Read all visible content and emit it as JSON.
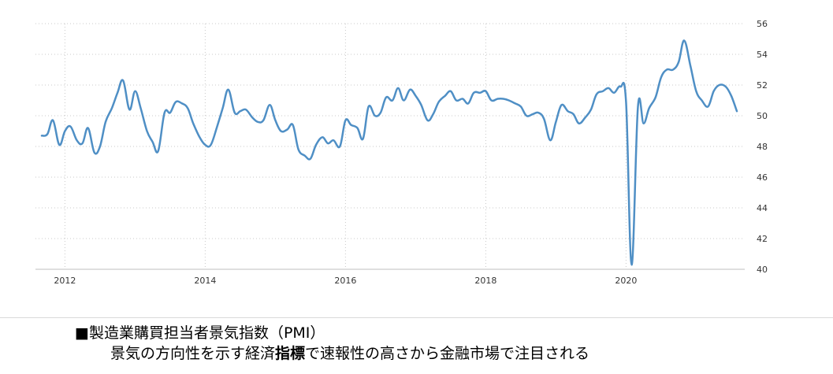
{
  "chart_data": {
    "type": "line",
    "title": "",
    "xlabel": "",
    "ylabel": "",
    "ylim": [
      40,
      56
    ],
    "xlim": [
      2011.67,
      2021.58
    ],
    "grid": true,
    "legend": "none",
    "line_color": "#4f8fc5",
    "grid_color": "#c8c8c8",
    "y_ticks": [
      "40",
      "42",
      "44",
      "46",
      "48",
      "50",
      "52",
      "54",
      "56"
    ],
    "x_ticks": [
      "2012",
      "2014",
      "2016",
      "2018",
      "2020"
    ],
    "series": [
      {
        "name": "",
        "points": [
          [
            2011.67,
            48.7
          ],
          [
            2011.75,
            48.8
          ],
          [
            2011.83,
            49.7
          ],
          [
            2011.92,
            48.1
          ],
          [
            2012.0,
            49.0
          ],
          [
            2012.08,
            49.3
          ],
          [
            2012.17,
            48.4
          ],
          [
            2012.25,
            48.2
          ],
          [
            2012.33,
            49.2
          ],
          [
            2012.42,
            47.6
          ],
          [
            2012.5,
            48.0
          ],
          [
            2012.58,
            49.6
          ],
          [
            2012.67,
            50.5
          ],
          [
            2012.75,
            51.5
          ],
          [
            2012.83,
            52.3
          ],
          [
            2012.92,
            50.4
          ],
          [
            2013.0,
            51.6
          ],
          [
            2013.08,
            50.5
          ],
          [
            2013.17,
            49.0
          ],
          [
            2013.25,
            48.3
          ],
          [
            2013.33,
            47.7
          ],
          [
            2013.42,
            50.2
          ],
          [
            2013.5,
            50.2
          ],
          [
            2013.58,
            50.9
          ],
          [
            2013.67,
            50.8
          ],
          [
            2013.75,
            50.5
          ],
          [
            2013.83,
            49.5
          ],
          [
            2013.92,
            48.6
          ],
          [
            2014.0,
            48.1
          ],
          [
            2014.08,
            48.1
          ],
          [
            2014.17,
            49.3
          ],
          [
            2014.25,
            50.5
          ],
          [
            2014.33,
            51.7
          ],
          [
            2014.42,
            50.2
          ],
          [
            2014.5,
            50.3
          ],
          [
            2014.58,
            50.4
          ],
          [
            2014.67,
            49.9
          ],
          [
            2014.75,
            49.6
          ],
          [
            2014.83,
            49.7
          ],
          [
            2014.92,
            50.7
          ],
          [
            2015.0,
            49.7
          ],
          [
            2015.08,
            49.0
          ],
          [
            2015.17,
            49.1
          ],
          [
            2015.25,
            49.4
          ],
          [
            2015.33,
            47.8
          ],
          [
            2015.42,
            47.4
          ],
          [
            2015.5,
            47.2
          ],
          [
            2015.58,
            48.1
          ],
          [
            2015.67,
            48.6
          ],
          [
            2015.75,
            48.2
          ],
          [
            2015.83,
            48.4
          ],
          [
            2015.92,
            48.0
          ],
          [
            2016.0,
            49.7
          ],
          [
            2016.08,
            49.4
          ],
          [
            2016.17,
            49.2
          ],
          [
            2016.25,
            48.5
          ],
          [
            2016.33,
            50.6
          ],
          [
            2016.42,
            50.0
          ],
          [
            2016.5,
            50.2
          ],
          [
            2016.58,
            51.2
          ],
          [
            2016.67,
            51.0
          ],
          [
            2016.75,
            51.8
          ],
          [
            2016.83,
            51.0
          ],
          [
            2016.92,
            51.7
          ],
          [
            2017.0,
            51.3
          ],
          [
            2017.08,
            50.7
          ],
          [
            2017.17,
            49.7
          ],
          [
            2017.25,
            50.1
          ],
          [
            2017.33,
            50.9
          ],
          [
            2017.42,
            51.3
          ],
          [
            2017.5,
            51.6
          ],
          [
            2017.58,
            51.0
          ],
          [
            2017.67,
            51.1
          ],
          [
            2017.75,
            50.8
          ],
          [
            2017.83,
            51.5
          ],
          [
            2017.92,
            51.5
          ],
          [
            2018.0,
            51.6
          ],
          [
            2018.08,
            51.0
          ],
          [
            2018.17,
            51.1
          ],
          [
            2018.25,
            51.1
          ],
          [
            2018.33,
            51.0
          ],
          [
            2018.42,
            50.8
          ],
          [
            2018.5,
            50.6
          ],
          [
            2018.58,
            50.0
          ],
          [
            2018.67,
            50.1
          ],
          [
            2018.75,
            50.2
          ],
          [
            2018.83,
            49.8
          ],
          [
            2018.92,
            48.4
          ],
          [
            2019.0,
            49.6
          ],
          [
            2019.08,
            50.7
          ],
          [
            2019.17,
            50.3
          ],
          [
            2019.25,
            50.1
          ],
          [
            2019.33,
            49.5
          ],
          [
            2019.42,
            49.9
          ],
          [
            2019.5,
            50.4
          ],
          [
            2019.58,
            51.4
          ],
          [
            2019.67,
            51.6
          ],
          [
            2019.75,
            51.8
          ],
          [
            2019.83,
            51.5
          ],
          [
            2019.92,
            51.9
          ],
          [
            2020.0,
            50.9
          ],
          [
            2020.08,
            40.3
          ],
          [
            2020.17,
            50.6
          ],
          [
            2020.25,
            49.5
          ],
          [
            2020.33,
            50.5
          ],
          [
            2020.42,
            51.2
          ],
          [
            2020.5,
            52.5
          ],
          [
            2020.58,
            53.0
          ],
          [
            2020.67,
            53.0
          ],
          [
            2020.75,
            53.5
          ],
          [
            2020.83,
            54.9
          ],
          [
            2020.92,
            53.2
          ],
          [
            2021.0,
            51.6
          ],
          [
            2021.08,
            51.0
          ],
          [
            2021.17,
            50.6
          ],
          [
            2021.25,
            51.6
          ],
          [
            2021.33,
            52.0
          ],
          [
            2021.42,
            51.9
          ],
          [
            2021.5,
            51.3
          ],
          [
            2021.58,
            50.3
          ]
        ]
      }
    ]
  },
  "caption": {
    "title": "■製造業購買担当者景気指数（PMI）",
    "subtitle_pre": "景気の方向性を示す経済",
    "subtitle_bold": "指標",
    "subtitle_post": "で速報性の高さから金融市場で注目される"
  }
}
